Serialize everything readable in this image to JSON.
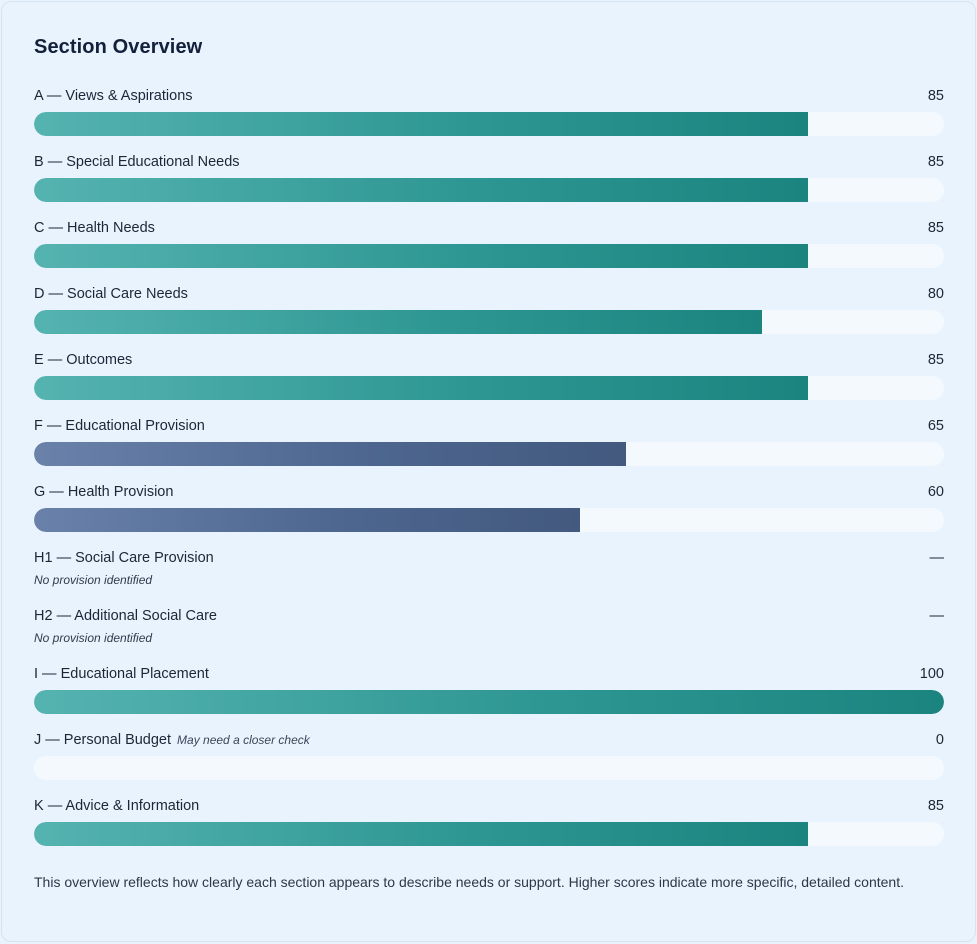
{
  "title": "Section Overview",
  "sections": [
    {
      "label": "A — Views & Aspirations",
      "value": "85",
      "score": 85,
      "color": "teal"
    },
    {
      "label": "B — Special Educational Needs",
      "value": "85",
      "score": 85,
      "color": "teal"
    },
    {
      "label": "C — Health Needs",
      "value": "85",
      "score": 85,
      "color": "teal"
    },
    {
      "label": "D — Social Care Needs",
      "value": "80",
      "score": 80,
      "color": "teal"
    },
    {
      "label": "E — Outcomes",
      "value": "85",
      "score": 85,
      "color": "teal"
    },
    {
      "label": "F — Educational Provision",
      "value": "65",
      "score": 65,
      "color": "slate"
    },
    {
      "label": "G — Health Provision",
      "value": "60",
      "score": 60,
      "color": "slate"
    },
    {
      "label": "H1 — Social Care Provision",
      "value": "—",
      "note": "No provision identified"
    },
    {
      "label": "H2 — Additional Social Care",
      "value": "—",
      "note": "No provision identified"
    },
    {
      "label": "I — Educational Placement",
      "value": "100",
      "score": 100,
      "color": "teal"
    },
    {
      "label": "J — Personal Budget",
      "value": "0",
      "score": 0,
      "color": "teal",
      "flag": "May need a closer check"
    },
    {
      "label": "K — Advice & Information",
      "value": "85",
      "score": 85,
      "color": "teal"
    }
  ],
  "footer": "This overview reflects how clearly each section appears to describe needs or support. Higher scores indicate more specific, detailed content.",
  "colors": {
    "teal_start": "#55b3b0",
    "teal_end": "#1c847f",
    "slate_start": "#6a82aa",
    "slate_end": "#43597e",
    "track": "#f4f9fe",
    "background": "#e9f3fd"
  }
}
